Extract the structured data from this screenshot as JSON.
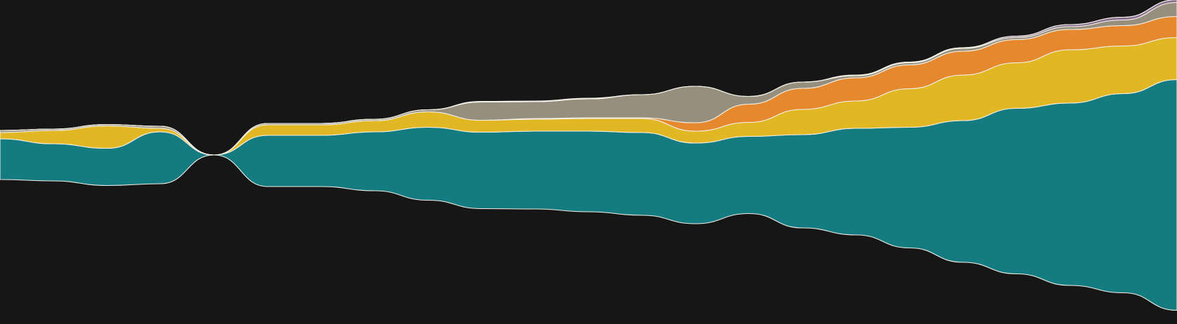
{
  "chart_data": {
    "type": "area",
    "subtype": "streamgraph",
    "baseline": "centered",
    "title": "",
    "xlabel": "",
    "ylabel": "",
    "axes_visible": false,
    "grid": false,
    "legend": "none",
    "background": "#161616",
    "outline_color": "#f2efe6",
    "x": [
      0,
      1,
      2,
      3,
      4,
      5,
      6,
      7,
      8,
      9,
      10,
      11,
      12,
      13,
      14,
      15,
      16,
      17,
      18,
      19,
      20,
      21,
      22
    ],
    "series": [
      {
        "color": "#147b80",
        "values": [
          58,
          53,
          53,
          74,
          0,
          73,
          73,
          84,
          104,
          109,
          111,
          115,
          118,
          115,
          110,
          133,
          152,
          172,
          202,
          236,
          260,
          284,
          329
        ]
      },
      {
        "color": "#e2b724",
        "values": [
          9,
          19,
          32,
          5,
          0,
          15,
          15,
          16,
          22,
          17,
          17,
          18,
          20,
          17,
          20,
          36,
          39,
          55,
          65,
          65,
          76,
          68,
          60
        ]
      },
      {
        "color": "#e6892e",
        "values": [
          0,
          0,
          0,
          0,
          0,
          0,
          0,
          0,
          0,
          0,
          1,
          1,
          1,
          12,
          26,
          30,
          33,
          34,
          34,
          33,
          29,
          29,
          30
        ]
      },
      {
        "color": "#978f7e",
        "values": [
          3,
          2,
          2,
          3,
          0,
          2,
          2,
          2,
          3,
          26,
          24,
          27,
          33,
          52,
          11,
          9,
          3,
          3,
          4,
          3,
          4,
          8,
          20
        ]
      },
      {
        "color": "#8a7090",
        "values": [
          0,
          0,
          0,
          0,
          0,
          0,
          0,
          0,
          0,
          0,
          0,
          0,
          0,
          0,
          0,
          0,
          1,
          1,
          1,
          2,
          3,
          4,
          4
        ]
      },
      {
        "color": "#c05a58",
        "values": [
          0,
          0,
          0,
          0,
          0,
          0,
          0,
          0,
          0,
          1,
          1,
          1,
          0,
          0,
          0,
          0,
          0,
          0,
          0,
          0,
          0,
          0,
          0
        ]
      }
    ]
  }
}
